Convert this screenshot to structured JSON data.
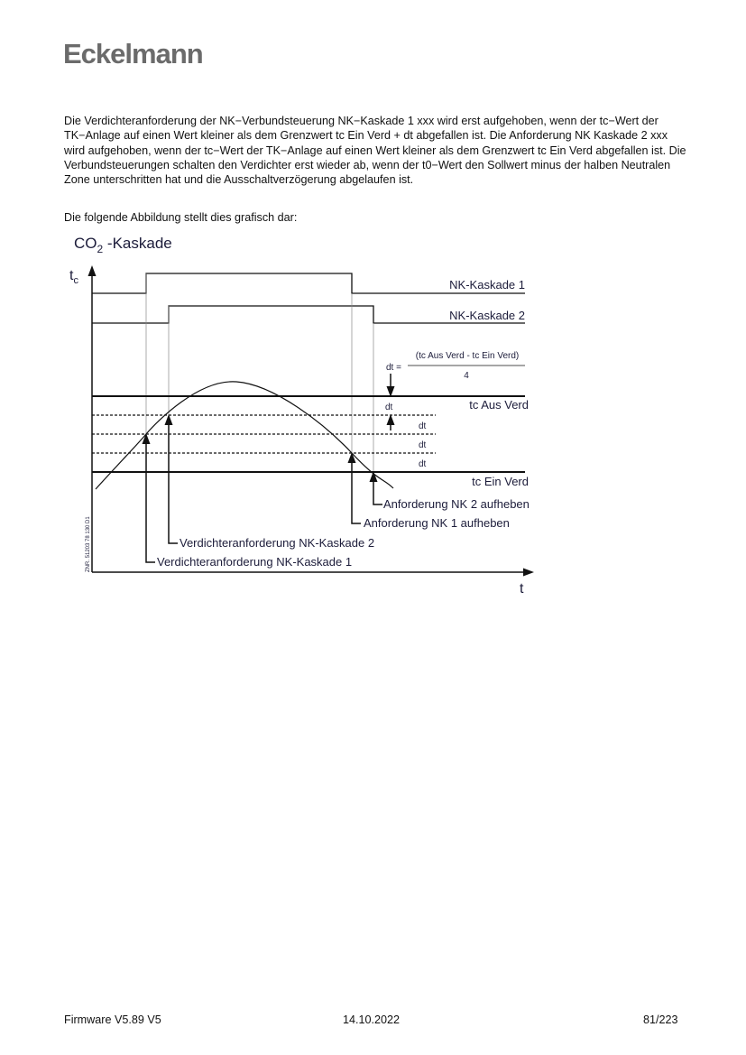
{
  "header": {
    "logo": "Eckelmann"
  },
  "body": {
    "paragraph": "Die Verdichteranforderung der NK−Verbundsteuerung NK−Kaskade 1 xxx wird erst aufgehoben, wenn der tc−Wert der TK−Anlage auf einen Wert kleiner als dem Grenzwert tc Ein Verd + dt abgefallen ist. Die Anforderung NK Kaskade 2 xxx wird aufgehoben, wenn der tc−Wert der  TK−Anlage auf einen Wert kleiner als dem Grenzwert tc Ein Verd abgefallen ist. Die Verbundsteuerungen schalten den Verdichter erst wieder ab, wenn der t0−Wert den Sollwert minus der halben Neutralen Zone unterschritten hat und die Ausschaltverzögerung abgelaufen ist.",
    "intro": "Die folgende Abbildung stellt dies grafisch dar:"
  },
  "figure": {
    "title_main": "CO",
    "title_sub": "2",
    "title_rest": " -Kaskade",
    "y_axis": "t",
    "y_axis_sub": "c",
    "x_axis": "t",
    "nk1": "NK-Kaskade 1",
    "nk2": "NK-Kaskade 2",
    "formula_lhs": "dt =",
    "formula_num": "(tc Aus Verd - tc Ein Verd)",
    "formula_den": "4",
    "dt": "dt",
    "aus": "tc Aus Verd",
    "ein": "tc Ein Verd",
    "anf_nk2": "Anforderung NK 2 aufheben",
    "anf_nk1": "Anforderung NK 1 aufheben",
    "vd2": "Verdichteranforderung NK-Kaskade 2",
    "vd1": "Verdichteranforderung NK-Kaskade 1",
    "drawing_no": "ZNR. 51203 78 130 D1"
  },
  "footer": {
    "left": "Firmware V5.89 V5",
    "center": "14.10.2022",
    "right": "81/223"
  }
}
